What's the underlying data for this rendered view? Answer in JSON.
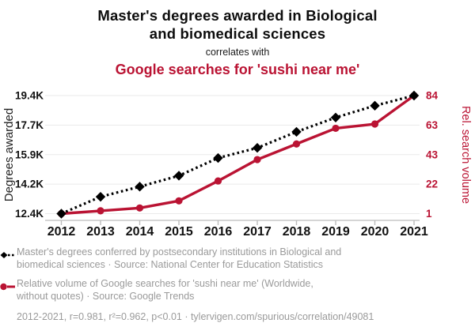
{
  "header": {
    "title_lines": [
      "Master's degrees awarded in Biological",
      "and biomedical sciences"
    ],
    "connector": "correlates with",
    "subtitle": "Google searches for 'sushi near me'"
  },
  "colors": {
    "accent_red": "#ba1333",
    "series_black": "#000000",
    "legend_gray": "#9a9a9a",
    "grid": "#eaeaea",
    "axis": "#bcbcbc",
    "tick_text": "#111111"
  },
  "chart_data": {
    "type": "line",
    "x": [
      2012,
      2013,
      2014,
      2015,
      2016,
      2017,
      2018,
      2019,
      2020,
      2021
    ],
    "x_ticks": [
      "2012",
      "2013",
      "2014",
      "2015",
      "2016",
      "2017",
      "2018",
      "2019",
      "2020",
      "2021"
    ],
    "series": [
      {
        "name": "Master's degrees conferred by postsecondary institutions in Biological and biomedical sciences",
        "axis": "left",
        "style": "dotted",
        "marker": "diamond",
        "values": [
          12400,
          13400,
          14000,
          14650,
          15700,
          16300,
          17250,
          18100,
          18800,
          19400
        ]
      },
      {
        "name": "Relative volume of Google searches for 'sushi near me'",
        "axis": "right",
        "style": "solid",
        "marker": "circle",
        "values": [
          1,
          3,
          5,
          10,
          24,
          39,
          50,
          61,
          64,
          84
        ]
      }
    ],
    "left_axis": {
      "label": "Degrees awarded",
      "tick_labels": [
        "12.4K",
        "14.2K",
        "15.9K",
        "17.7K",
        "19.4K"
      ],
      "range": [
        12400,
        19400
      ]
    },
    "right_axis": {
      "label": "Rel. search volume",
      "tick_labels": [
        "1",
        "22",
        "43",
        "63",
        "84"
      ],
      "range": [
        1,
        84
      ]
    },
    "grid": "horizontal-only",
    "legend_position": "bottom"
  },
  "legend": {
    "items": [
      {
        "marker": "diamond-dotted",
        "lines": [
          "Master's degrees conferred by postsecondary institutions in Biological and",
          "biomedical sciences · Source: National Center for Education Statistics"
        ]
      },
      {
        "marker": "circle-solid",
        "lines": [
          "Relative volume of Google searches for 'sushi near me' (Worldwide,",
          "without quotes) · Source: Google Trends"
        ]
      }
    ]
  },
  "footer": {
    "text": "2012-2021, r=0.981, r²=0.962, p<0.01 · tylervigen.com/spurious/correlation/49081"
  }
}
